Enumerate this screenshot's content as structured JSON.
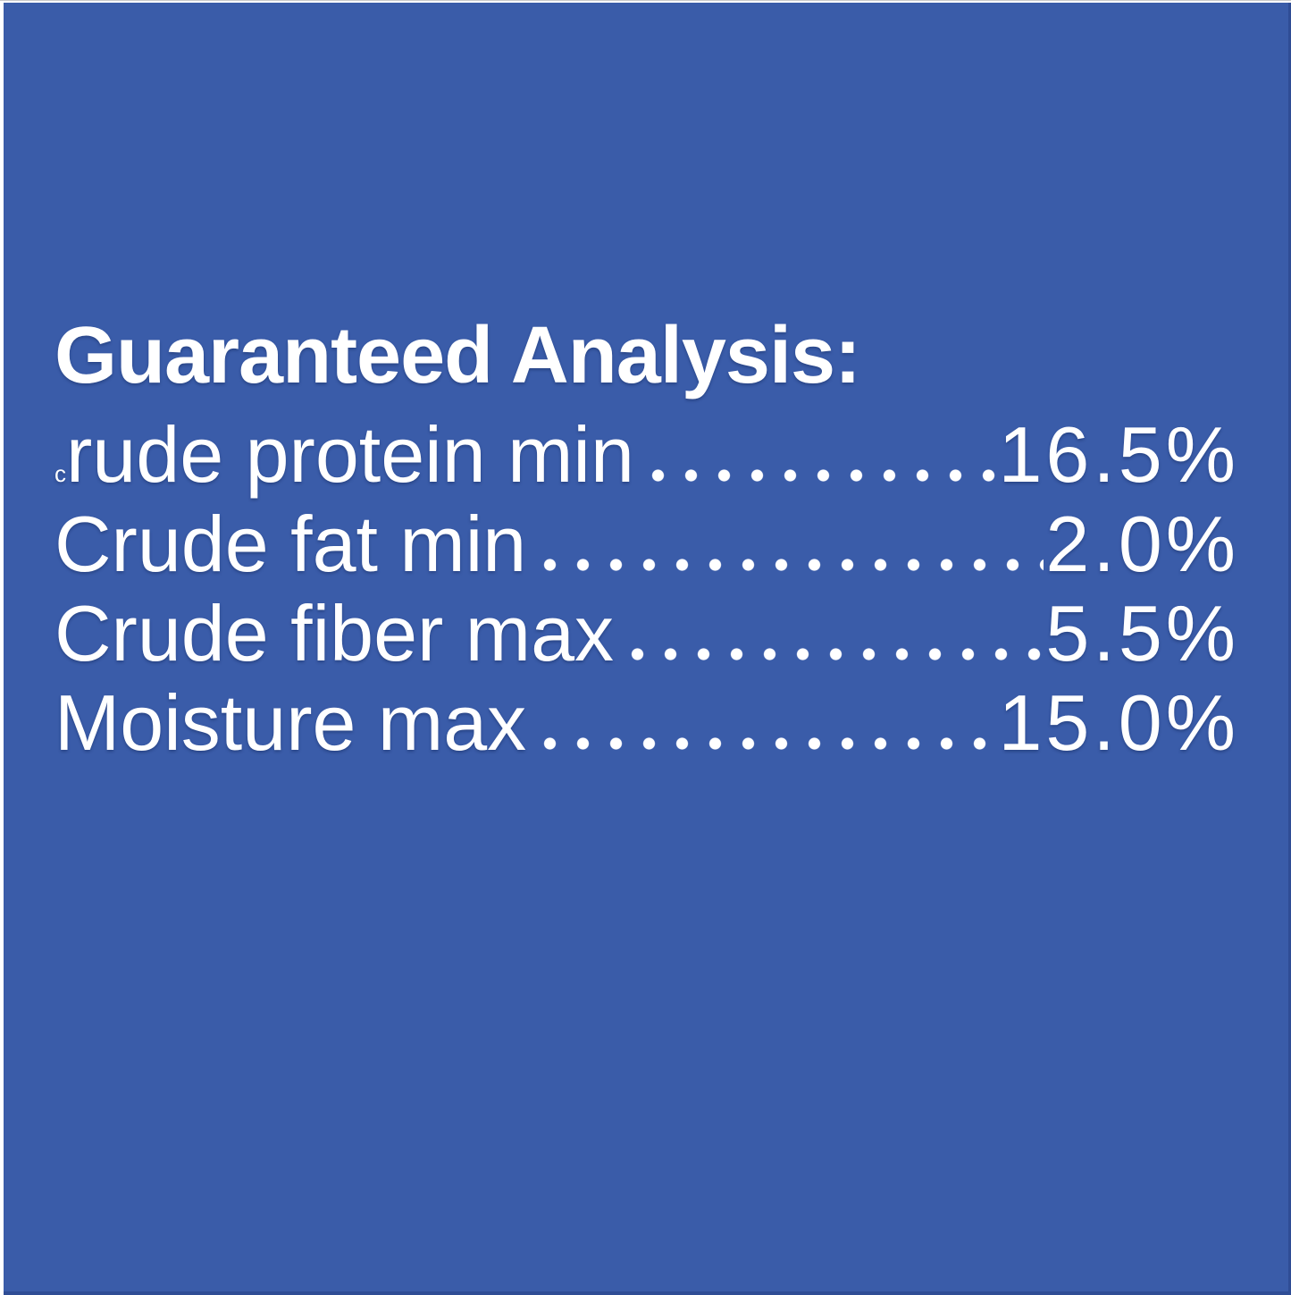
{
  "colors": {
    "panel_background": "#3a5ca9",
    "panel_edge_shade": "#2f4d95",
    "text": "#ffffff",
    "frame": "#ffffff"
  },
  "guaranteed_analysis": {
    "heading": "Guaranteed Analysis:",
    "rows": [
      {
        "prefix": "c",
        "label": "rude protein min",
        "value": "16.5%"
      },
      {
        "prefix": "",
        "label": "Crude fat min",
        "value": "2.0%"
      },
      {
        "prefix": "",
        "label": "Crude fiber max",
        "value": "5.5%"
      },
      {
        "prefix": "",
        "label": "Moisture max",
        "value": "15.0%"
      }
    ]
  }
}
